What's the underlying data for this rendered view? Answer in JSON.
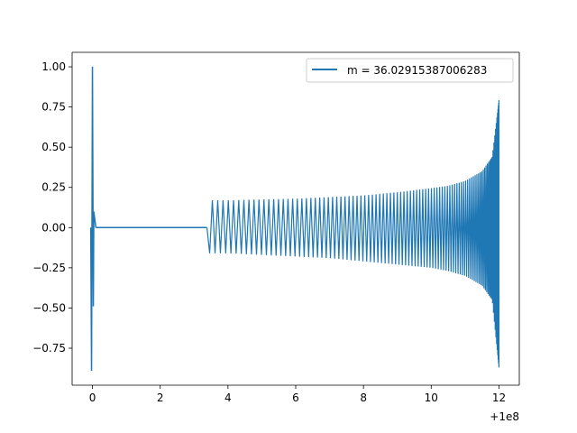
{
  "chart_data": {
    "type": "line",
    "title": "",
    "xlabel": "",
    "ylabel": "",
    "x_offset_label": "+1e8",
    "xlim": [
      -0.6,
      12.6
    ],
    "ylim": [
      -0.98,
      1.09
    ],
    "x_ticks": [
      0,
      2,
      4,
      6,
      8,
      10,
      12
    ],
    "x_tick_labels": [
      "0",
      "2",
      "4",
      "6",
      "8",
      "10",
      "12"
    ],
    "y_ticks": [
      -0.75,
      -0.5,
      -0.25,
      0.0,
      0.25,
      0.5,
      0.75,
      1.0
    ],
    "y_tick_labels": [
      "−0.75",
      "−0.50",
      "−0.25",
      "0.00",
      "0.25",
      "0.50",
      "0.75",
      "1.00"
    ],
    "grid": false,
    "legend_position": "top-right",
    "series": [
      {
        "name": "m = 36.02915387006283",
        "color": "#1f77b4",
        "burst": {
          "x": 0.0,
          "max": 1.0,
          "min": -0.89
        },
        "flat": {
          "x_start": 0.1,
          "x_end": 3.38,
          "value": 0.0
        },
        "chirp_envelope": {
          "x": [
            3.38,
            4,
            5,
            6,
            7,
            8,
            9,
            10,
            10.5,
            11,
            11.5,
            11.8,
            12.0
          ],
          "upper": [
            0.17,
            0.17,
            0.175,
            0.18,
            0.19,
            0.2,
            0.22,
            0.245,
            0.26,
            0.29,
            0.35,
            0.44,
            0.79
          ],
          "lower": [
            -0.16,
            -0.16,
            -0.17,
            -0.18,
            -0.19,
            -0.21,
            -0.23,
            -0.25,
            -0.27,
            -0.3,
            -0.36,
            -0.45,
            -0.87
          ]
        }
      }
    ]
  }
}
